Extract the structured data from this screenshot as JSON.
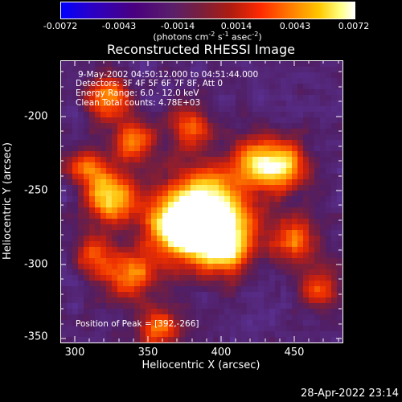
{
  "colorbar": {
    "ticks": [
      "-0.0072",
      "-0.0043",
      "-0.0014",
      "0.0014",
      "0.0043",
      "0.0072"
    ],
    "units_text": "(photons cm",
    "units_exp1": "-2",
    "units_mid": " s",
    "units_exp2": "-1",
    "units_mid2": " asec",
    "units_exp3": "-2",
    "units_end": ")",
    "colors": [
      "#0000ff",
      "#4a007f",
      "#b01c10",
      "#ff7a00",
      "#ffff80",
      "#ffffff"
    ]
  },
  "title": "Reconstructed RHESSI Image",
  "annotations": {
    "time_range": "9-May-2002 04:50:12.000 to 04:51:44.000",
    "detectors": "Detectors: 3F 4F 5F 6F 7F 8F, Att 0",
    "energy": "Energy Range: 6.0 - 12.0 keV",
    "clean": "Clean    Total counts: 4.78E+03",
    "peak": "Position of Peak = [392,-266]"
  },
  "axes": {
    "x_ticks": [
      "300",
      "350",
      "400",
      "450"
    ],
    "y_ticks": [
      "-200",
      "-250",
      "-300",
      "-350"
    ],
    "x_title": "Heliocentric X (arcsec)",
    "y_title": "Heliocentric Y (arcsec)",
    "x_range": [
      292,
      485
    ],
    "y_range": [
      -352,
      -162
    ]
  },
  "timestamp": "28-Apr-2022 23:14",
  "image": {
    "peak_x": 392,
    "peak_y": -266,
    "colors": {
      "background": "#000000",
      "low": "#3a1a5a"
    }
  }
}
